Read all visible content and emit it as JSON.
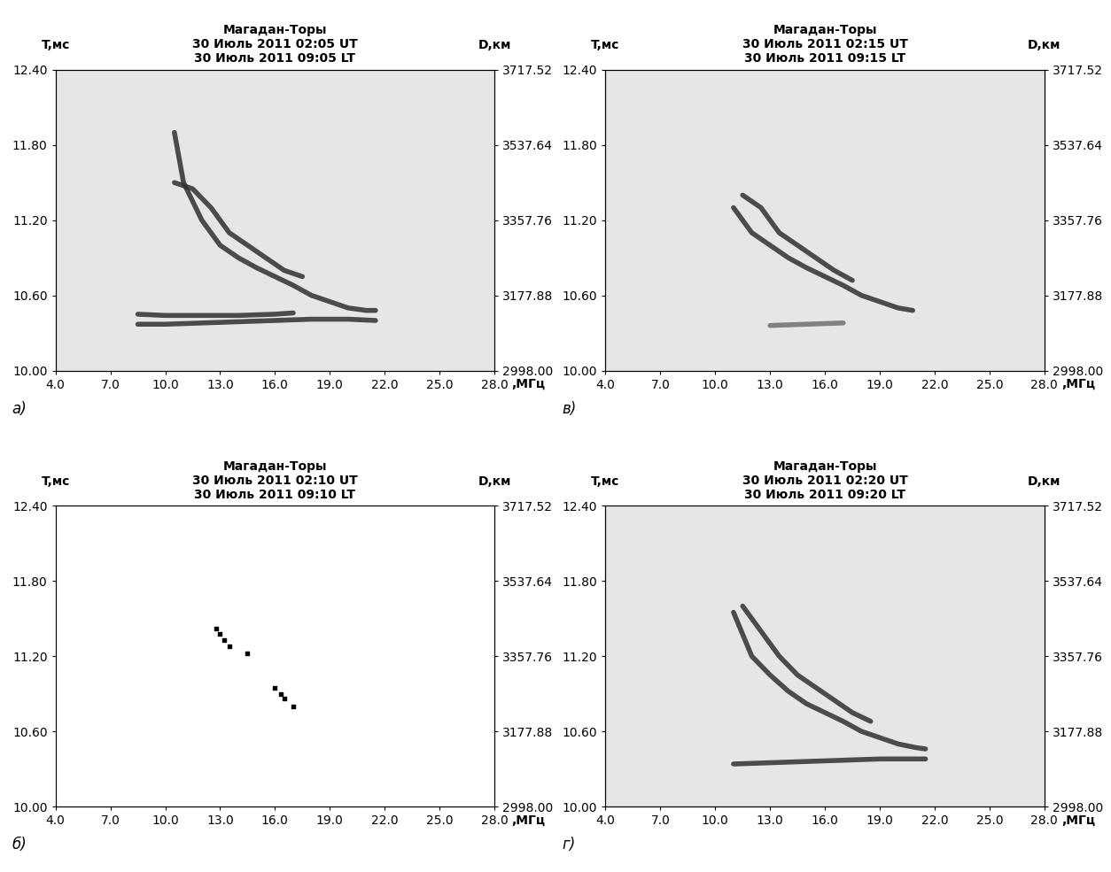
{
  "chart_data": [
    {
      "type": "line",
      "panel_label": "а)",
      "title": "Магадан-Торы",
      "subtitle": [
        "30 Июль 2011 02:05 UT",
        "30 Июль 2011 09:05 LT"
      ],
      "y_label": "T,мс",
      "y2_label": "D,км",
      "x_label": ",МГц",
      "xlim": [
        4,
        28
      ],
      "ylim": [
        10,
        12.4
      ],
      "y2lim": [
        2998,
        3717.52
      ],
      "xticks": [
        {
          "value": 4,
          "label": "4.0"
        },
        {
          "value": 7,
          "label": "7.0"
        },
        {
          "value": 10,
          "label": "10.0"
        },
        {
          "value": 13,
          "label": "13.0"
        },
        {
          "value": 16,
          "label": "16.0"
        },
        {
          "value": 19,
          "label": "19.0"
        },
        {
          "value": 22,
          "label": "22.0"
        },
        {
          "value": 25,
          "label": "25.0"
        },
        {
          "value": 28,
          "label": "28.0"
        }
      ],
      "yticks": [
        {
          "value": 10,
          "label": "10.00"
        },
        {
          "value": 10.6,
          "label": "10.60"
        },
        {
          "value": 11.2,
          "label": "11.20"
        },
        {
          "value": 11.8,
          "label": "11.80"
        },
        {
          "value": 12.4,
          "label": "12.40"
        }
      ],
      "y2ticks": [
        {
          "value": 2998,
          "label": "2998.00"
        },
        {
          "value": 3177.88,
          "label": "3177.88"
        },
        {
          "value": 3357.76,
          "label": "3357.76"
        },
        {
          "value": 3537.64,
          "label": "3537.64"
        },
        {
          "value": 3717.52,
          "label": "3717.52"
        }
      ],
      "series": [
        {
          "color": "#303030",
          "x": [
            10.5,
            11,
            12,
            13,
            14,
            15,
            16,
            17,
            18,
            19,
            20,
            21,
            21.5
          ],
          "values": [
            11.9,
            11.5,
            11.2,
            11.0,
            10.9,
            10.82,
            10.75,
            10.68,
            10.6,
            10.55,
            10.5,
            10.48,
            10.48
          ]
        },
        {
          "color": "#303030",
          "x": [
            10.5,
            11.5,
            12.5,
            13.5,
            14.5,
            15.5,
            16.5,
            17.5
          ],
          "values": [
            11.5,
            11.45,
            11.3,
            11.1,
            11.0,
            10.9,
            10.8,
            10.75
          ]
        },
        {
          "color": "#303030",
          "x": [
            8.5,
            10,
            12,
            14,
            16,
            18,
            20,
            21.5
          ],
          "values": [
            10.37,
            10.37,
            10.38,
            10.39,
            10.4,
            10.41,
            10.41,
            10.4
          ]
        },
        {
          "color": "#303030",
          "x": [
            8.5,
            10,
            12,
            14,
            16,
            17
          ],
          "values": [
            10.45,
            10.44,
            10.44,
            10.44,
            10.45,
            10.46
          ]
        }
      ]
    },
    {
      "type": "scatter",
      "panel_label": "б)",
      "title": "Магадан-Торы",
      "subtitle": [
        "30 Июль 2011 02:10 UT",
        "30 Июль 2011 09:10 LT"
      ],
      "y_label": "T,мс",
      "y2_label": "D,км",
      "x_label": ",МГц",
      "xlim": [
        4,
        28
      ],
      "ylim": [
        10,
        12.4
      ],
      "y2lim": [
        2998,
        3717.52
      ],
      "xticks": [
        {
          "value": 4,
          "label": "4.0"
        },
        {
          "value": 7,
          "label": "7.0"
        },
        {
          "value": 10,
          "label": "10.0"
        },
        {
          "value": 13,
          "label": "13.0"
        },
        {
          "value": 16,
          "label": "16.0"
        },
        {
          "value": 19,
          "label": "19.0"
        },
        {
          "value": 22,
          "label": "22.0"
        },
        {
          "value": 25,
          "label": "25.0"
        },
        {
          "value": 28,
          "label": "28.0"
        }
      ],
      "yticks": [
        {
          "value": 10,
          "label": "10.00"
        },
        {
          "value": 10.6,
          "label": "10.60"
        },
        {
          "value": 11.2,
          "label": "11.20"
        },
        {
          "value": 11.8,
          "label": "11.80"
        },
        {
          "value": 12.4,
          "label": "12.40"
        }
      ],
      "y2ticks": [
        {
          "value": 2998,
          "label": "2998.00"
        },
        {
          "value": 3177.88,
          "label": "3177.88"
        },
        {
          "value": 3357.76,
          "label": "3357.76"
        },
        {
          "value": 3537.64,
          "label": "3537.64"
        },
        {
          "value": 3717.52,
          "label": "3717.52"
        }
      ],
      "series": [
        {
          "color": "#000000",
          "marker": "s",
          "x": [
            12.8,
            13.0,
            13.2,
            13.5,
            14.5,
            16.0,
            16.3,
            16.5,
            17.0
          ],
          "values": [
            11.42,
            11.38,
            11.33,
            11.28,
            11.22,
            10.95,
            10.9,
            10.86,
            10.8
          ]
        }
      ]
    },
    {
      "type": "line",
      "panel_label": "в)",
      "title": "Магадан-Торы",
      "subtitle": [
        "30 Июль 2011 02:15 UT",
        "30 Июль 2011 09:15 LT"
      ],
      "y_label": "T,мс",
      "y2_label": "D,км",
      "x_label": ",МГц",
      "xlim": [
        4,
        28
      ],
      "ylim": [
        10,
        12.4
      ],
      "y2lim": [
        2998,
        3717.52
      ],
      "xticks": [
        {
          "value": 4,
          "label": "4.0"
        },
        {
          "value": 7,
          "label": "7.0"
        },
        {
          "value": 10,
          "label": "10.0"
        },
        {
          "value": 13,
          "label": "13.0"
        },
        {
          "value": 16,
          "label": "16.0"
        },
        {
          "value": 19,
          "label": "19.0"
        },
        {
          "value": 22,
          "label": "22.0"
        },
        {
          "value": 25,
          "label": "25.0"
        },
        {
          "value": 28,
          "label": "28.0"
        }
      ],
      "yticks": [
        {
          "value": 10,
          "label": "10.00"
        },
        {
          "value": 10.6,
          "label": "10.60"
        },
        {
          "value": 11.2,
          "label": "11.20"
        },
        {
          "value": 11.8,
          "label": "11.80"
        },
        {
          "value": 12.4,
          "label": "12.40"
        }
      ],
      "y2ticks": [
        {
          "value": 2998,
          "label": "2998.00"
        },
        {
          "value": 3177.88,
          "label": "3177.88"
        },
        {
          "value": 3357.76,
          "label": "3357.76"
        },
        {
          "value": 3537.64,
          "label": "3537.64"
        },
        {
          "value": 3717.52,
          "label": "3717.52"
        }
      ],
      "series": [
        {
          "color": "#303030",
          "x": [
            11,
            12,
            13,
            14,
            15,
            16,
            17,
            18,
            19,
            20,
            20.8
          ],
          "values": [
            11.3,
            11.1,
            11.0,
            10.9,
            10.82,
            10.75,
            10.68,
            10.6,
            10.55,
            10.5,
            10.48
          ]
        },
        {
          "color": "#303030",
          "x": [
            11.5,
            12.5,
            13.5,
            14.5,
            15.5,
            16.5,
            17.5
          ],
          "values": [
            11.4,
            11.3,
            11.1,
            11.0,
            10.9,
            10.8,
            10.72
          ]
        },
        {
          "color": "#707070",
          "x": [
            13,
            15,
            17
          ],
          "values": [
            10.36,
            10.37,
            10.38
          ]
        }
      ]
    },
    {
      "type": "line",
      "panel_label": "г)",
      "title": "Магадан-Торы",
      "subtitle": [
        "30 Июль 2011 02:20 UT",
        "30 Июль 2011 09:20 LT"
      ],
      "y_label": "T,мс",
      "y2_label": "D,км",
      "x_label": ",МГц",
      "xlim": [
        4,
        28
      ],
      "ylim": [
        10,
        12.4
      ],
      "y2lim": [
        2998,
        3717.52
      ],
      "xticks": [
        {
          "value": 4,
          "label": "4.0"
        },
        {
          "value": 7,
          "label": "7.0"
        },
        {
          "value": 10,
          "label": "10.0"
        },
        {
          "value": 13,
          "label": "13.0"
        },
        {
          "value": 16,
          "label": "16.0"
        },
        {
          "value": 19,
          "label": "19.0"
        },
        {
          "value": 22,
          "label": "22.0"
        },
        {
          "value": 25,
          "label": "25.0"
        },
        {
          "value": 28,
          "label": "28.0"
        }
      ],
      "yticks": [
        {
          "value": 10,
          "label": "10.00"
        },
        {
          "value": 10.6,
          "label": "10.60"
        },
        {
          "value": 11.2,
          "label": "11.20"
        },
        {
          "value": 11.8,
          "label": "11.80"
        },
        {
          "value": 12.4,
          "label": "12.40"
        }
      ],
      "y2ticks": [
        {
          "value": 2998,
          "label": "2998.00"
        },
        {
          "value": 3177.88,
          "label": "3177.88"
        },
        {
          "value": 3357.76,
          "label": "3357.76"
        },
        {
          "value": 3537.64,
          "label": "3537.64"
        },
        {
          "value": 3717.52,
          "label": "3717.52"
        }
      ],
      "series": [
        {
          "color": "#303030",
          "x": [
            11,
            12,
            13,
            14,
            15,
            16,
            17,
            18,
            19,
            20,
            21,
            21.5
          ],
          "values": [
            11.55,
            11.2,
            11.05,
            10.92,
            10.82,
            10.75,
            10.68,
            10.6,
            10.55,
            10.5,
            10.47,
            10.46
          ]
        },
        {
          "color": "#303030",
          "x": [
            11.5,
            12.5,
            13.5,
            14.5,
            15.5,
            16.5,
            17.5,
            18.5
          ],
          "values": [
            11.6,
            11.4,
            11.2,
            11.05,
            10.95,
            10.85,
            10.75,
            10.68
          ]
        },
        {
          "color": "#303030",
          "x": [
            11,
            13,
            15,
            17,
            19,
            21.5
          ],
          "values": [
            10.34,
            10.35,
            10.36,
            10.37,
            10.38,
            10.38
          ]
        }
      ]
    }
  ]
}
